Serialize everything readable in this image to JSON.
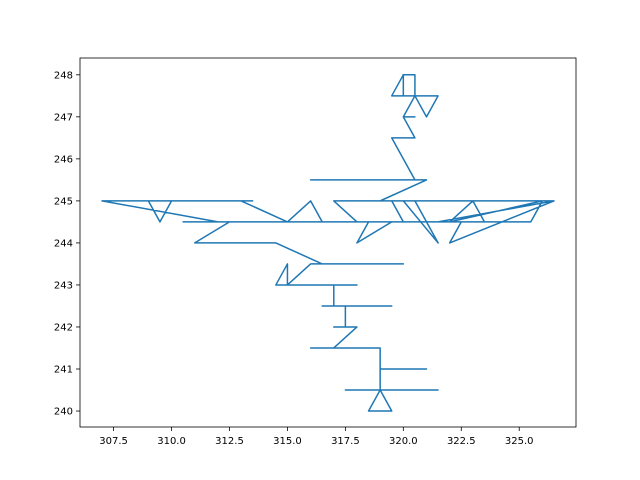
{
  "chart_data": {
    "type": "line",
    "title": "",
    "xlabel": "",
    "ylabel": "",
    "xlim": [
      306.05,
      327.45
    ],
    "ylim": [
      239.62,
      248.4
    ],
    "x_ticks": [
      307.5,
      310.0,
      312.5,
      315.0,
      317.5,
      320.0,
      322.5,
      325.0
    ],
    "x_tick_labels": [
      "307.5",
      "310.0",
      "312.5",
      "315.0",
      "317.5",
      "320.0",
      "322.5",
      "325.0"
    ],
    "y_ticks": [
      240,
      241,
      242,
      243,
      244,
      245,
      246,
      247,
      248
    ],
    "y_tick_labels": [
      "240",
      "241",
      "242",
      "243",
      "244",
      "245",
      "246",
      "247",
      "248"
    ],
    "grid": false,
    "colors": {
      "line": "#1f77b4"
    },
    "series": [
      {
        "x": [
          319.0,
          318.5,
          319.0,
          319.5,
          319.0,
          321.5,
          317.5,
          319.0,
          319.0,
          321.0,
          319.0,
          319.0,
          316.0,
          319.0,
          319.0,
          317.0,
          318.0,
          317.0,
          317.5,
          317.5,
          317.0,
          316.5,
          317.0,
          319.5,
          317.0,
          317.0,
          318.0,
          315.0,
          315.0,
          314.5,
          315.0,
          316.0,
          317.5,
          320.0,
          320.0,
          316.5,
          314.5,
          313.0,
          311.0,
          312.5,
          310.5,
          313.0,
          316.5,
          312.0,
          307.0,
          313.5,
          310.0,
          309.5,
          309.0,
          307.0,
          311.0,
          310.5,
          313.0,
          315.0,
          316.0,
          316.5,
          317.0,
          321.0,
          319.0,
          318.5,
          318.0,
          319.5,
          319.5,
          320.0,
          319.0,
          318.0,
          317.0,
          319.5,
          320.0,
          320.5,
          321.0,
          322.0,
          323.0,
          323.5,
          322.5,
          322.0,
          326.5,
          325.0,
          324.5,
          325.0,
          326.0,
          322.0,
          326.0,
          325.5,
          321.0,
          321.5,
          326.5,
          323.5,
          321.0,
          319.5,
          320.5,
          321.5,
          320.0,
          319.0,
          321.0,
          319.5,
          320.5,
          316.0,
          316.0,
          320.5,
          319.5,
          320.0,
          320.5,
          320.0,
          320.5,
          320.0,
          320.5,
          321.0,
          321.5,
          321.0,
          320.5,
          320.0,
          320.0,
          319.5,
          320.0,
          320.5,
          320.5,
          320.0
        ],
        "y": [
          240.5,
          240.0,
          240.0,
          240.0,
          240.5,
          240.5,
          240.5,
          240.5,
          241.0,
          241.0,
          241.0,
          241.5,
          241.5,
          241.5,
          241.5,
          241.5,
          242.0,
          242.0,
          242.0,
          242.5,
          242.5,
          242.5,
          242.5,
          242.5,
          242.5,
          243.0,
          243.0,
          243.0,
          243.5,
          243.0,
          243.0,
          243.5,
          243.5,
          243.5,
          243.5,
          243.5,
          244.0,
          244.0,
          244.0,
          244.5,
          244.5,
          244.5,
          244.5,
          244.5,
          245.0,
          245.0,
          245.0,
          244.5,
          245.0,
          245.0,
          245.0,
          245.0,
          245.0,
          244.5,
          245.0,
          244.5,
          244.5,
          244.5,
          244.5,
          244.5,
          244.0,
          244.5,
          244.5,
          244.5,
          244.5,
          244.5,
          245.0,
          245.0,
          244.5,
          244.5,
          244.5,
          244.5,
          245.0,
          244.5,
          244.5,
          244.0,
          245.0,
          245.0,
          245.0,
          245.0,
          245.0,
          244.5,
          245.0,
          244.5,
          244.5,
          244.5,
          245.0,
          245.0,
          245.0,
          245.0,
          245.0,
          244.0,
          245.0,
          245.0,
          245.5,
          245.5,
          245.5,
          245.5,
          245.5,
          245.5,
          246.5,
          246.5,
          246.5,
          247.0,
          247.0,
          247.0,
          247.5,
          247.5,
          247.5,
          247.0,
          247.5,
          247.5,
          248.0,
          247.5,
          247.5,
          247.5,
          248.0,
          248.0
        ]
      }
    ]
  }
}
